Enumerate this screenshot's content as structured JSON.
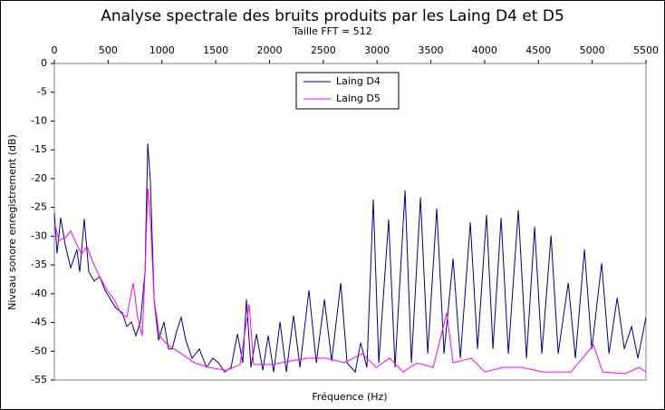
{
  "chart_data": {
    "type": "line",
    "title": "Analyse spectrale des bruits produits par les Laing D4 et D5",
    "subtitle": "Taille FFT = 512",
    "x_label": "Fréquence (Hz)",
    "y_label": "Niveau sonore enregistrement (dB)",
    "xlim": [
      0,
      5500
    ],
    "xticks": [
      0,
      500,
      1000,
      1500,
      2000,
      2500,
      3000,
      3500,
      4000,
      4500,
      5000,
      5500
    ],
    "ylim": [
      -55,
      0
    ],
    "yticks": [
      0,
      -5,
      -10,
      -15,
      -20,
      -25,
      -30,
      -35,
      -40,
      -45,
      -50,
      -55
    ],
    "legend": "top-center",
    "series": [
      {
        "name": "Laing D4",
        "color": "#000080",
        "x": [
          0,
          25,
          59,
          101,
          152,
          210,
          236,
          278,
          320,
          371,
          421,
          472,
          522,
          573,
          632,
          674,
          716,
          758,
          800,
          843,
          868,
          893,
          927,
          969,
          1019,
          1061,
          1095,
          1137,
          1179,
          1222,
          1280,
          1348,
          1415,
          1474,
          1525,
          1584,
          1643,
          1702,
          1752,
          1786,
          1828,
          1879,
          1938,
          1988,
          2039,
          2098,
          2157,
          2224,
          2283,
          2367,
          2435,
          2511,
          2578,
          2662,
          2721,
          2797,
          2848,
          2906,
          2965,
          3016,
          3108,
          3167,
          3260,
          3319,
          3404,
          3471,
          3555,
          3623,
          3707,
          3774,
          3867,
          3934,
          4018,
          4077,
          4153,
          4221,
          4313,
          4389,
          4465,
          4532,
          4617,
          4684,
          4777,
          4844,
          4928,
          4996,
          5088,
          5156,
          5232,
          5299,
          5366,
          5425,
          5500
        ],
        "values": [
          -26,
          -33,
          -26.8,
          -31.5,
          -35.5,
          -32.3,
          -36.2,
          -27,
          -36.2,
          -37.8,
          -37,
          -39.4,
          -41,
          -42.5,
          -43.3,
          -45.7,
          -44.9,
          -47.3,
          -44.9,
          -36.2,
          -13.9,
          -20.5,
          -41,
          -48.1,
          -44.9,
          -49.6,
          -49.6,
          -46.5,
          -44.1,
          -48.1,
          -51.2,
          -49.6,
          -52.8,
          -51.2,
          -52,
          -53.6,
          -52.8,
          -47,
          -52,
          -41,
          -52.8,
          -47,
          -53.3,
          -47.3,
          -53.6,
          -44.9,
          -53.6,
          -43.8,
          -52.8,
          -39.4,
          -52,
          -41,
          -51.7,
          -38.1,
          -52,
          -53.6,
          -48.5,
          -52.8,
          -23.6,
          -52,
          -27.1,
          -52.8,
          -22.1,
          -52,
          -23.3,
          -50.4,
          -25.2,
          -50.4,
          -33.9,
          -51.2,
          -27.6,
          -49.6,
          -26.3,
          -49.6,
          -26.8,
          -50.4,
          -25.5,
          -51.2,
          -28.4,
          -50.4,
          -29.9,
          -50.4,
          -38.1,
          -51.2,
          -32.3,
          -49.6,
          -34.7,
          -50.4,
          -40.7,
          -49.6,
          -45.7,
          -51.2,
          -44.1
        ]
      },
      {
        "name": "Laing D5",
        "color": "#ff00ff",
        "x": [
          0,
          42,
          101,
          152,
          202,
          253,
          303,
          362,
          421,
          489,
          556,
          615,
          674,
          733,
          775,
          817,
          843,
          868,
          893,
          927,
          977,
          1053,
          1179,
          1306,
          1432,
          1601,
          1727,
          1811,
          1853,
          2022,
          2190,
          2359,
          2527,
          2696,
          2864,
          2990,
          3117,
          3243,
          3370,
          3522,
          3648,
          3707,
          3875,
          4002,
          4170,
          4339,
          4549,
          4802,
          5012,
          5097,
          5307,
          5434,
          5500
        ],
        "values": [
          -27.6,
          -30.7,
          -30.3,
          -29.1,
          -31.2,
          -33.1,
          -31.8,
          -34.7,
          -37,
          -39.4,
          -41,
          -43.3,
          -44.1,
          -38.1,
          -44.1,
          -47.3,
          -36.2,
          -21.7,
          -26.8,
          -41,
          -47.3,
          -48.9,
          -50.4,
          -52,
          -52.8,
          -53.3,
          -52.3,
          -41.8,
          -52.3,
          -52.3,
          -51.7,
          -51.2,
          -51.2,
          -52,
          -50.4,
          -52.8,
          -51.2,
          -53.6,
          -52,
          -52.8,
          -43.3,
          -52,
          -51.2,
          -53.6,
          -52.8,
          -52.8,
          -53.6,
          -53.6,
          -48.9,
          -53.6,
          -53.9,
          -52.8,
          -53.6
        ]
      }
    ]
  }
}
